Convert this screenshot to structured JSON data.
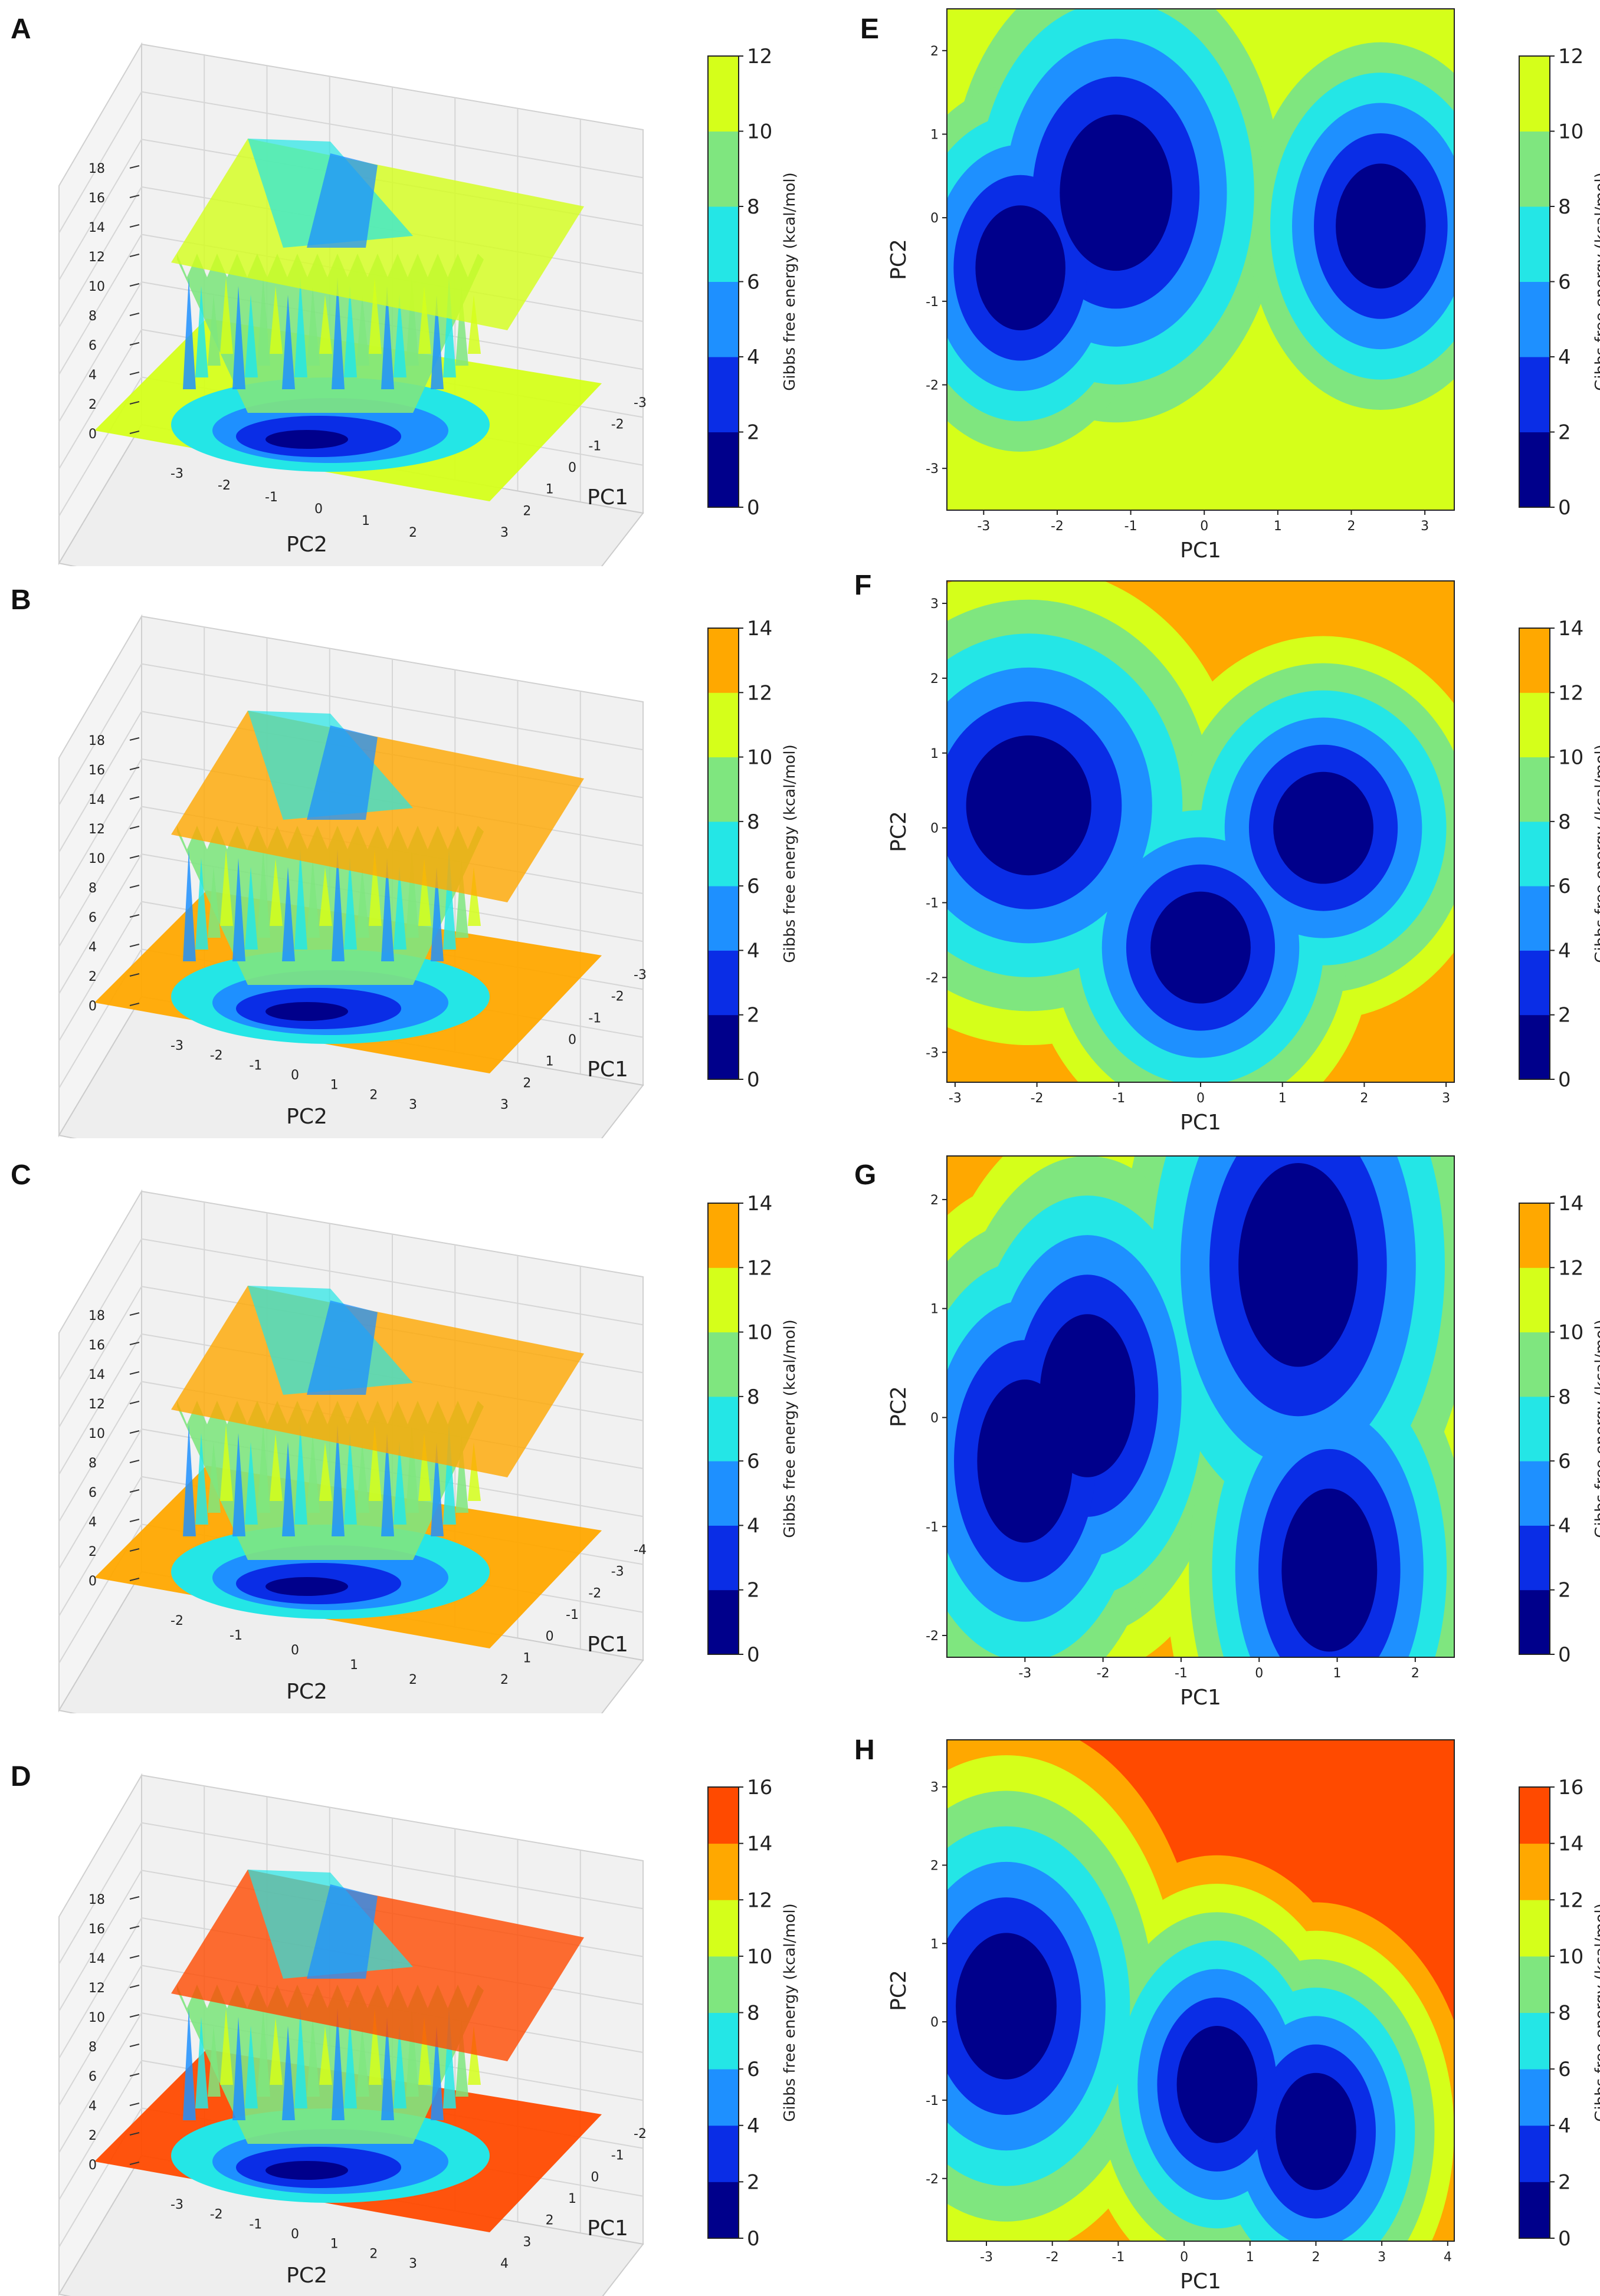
{
  "chart_data": [
    {
      "panel": "A",
      "type": "surface3d",
      "xlabel": "PC1",
      "ylabel": "PC2",
      "zticks": [
        "0",
        "2",
        "4",
        "6",
        "8",
        "10",
        "12",
        "14",
        "16",
        "18"
      ],
      "xticks": [
        "-3",
        "-2",
        "-1",
        "0",
        "1",
        "2",
        "3"
      ],
      "yticks": [
        "-3",
        "-2",
        "-1",
        "0",
        "1",
        "2"
      ],
      "colorbar": {
        "label": "Gibbs free energy (kcal/mol)",
        "ticks": [
          "0",
          "2",
          "4",
          "6",
          "8",
          "10",
          "12"
        ]
      }
    },
    {
      "panel": "B",
      "type": "surface3d",
      "xlabel": "PC1",
      "ylabel": "PC2",
      "zticks": [
        "0",
        "2",
        "4",
        "6",
        "8",
        "10",
        "12",
        "14",
        "16",
        "18"
      ],
      "xticks": [
        "-3",
        "-2",
        "-1",
        "0",
        "1",
        "2",
        "3"
      ],
      "yticks": [
        "-3",
        "-2",
        "-1",
        "0",
        "1",
        "2",
        "3"
      ],
      "colorbar": {
        "label": "Gibbs free energy (kcal/mol)",
        "ticks": [
          "0",
          "2",
          "4",
          "6",
          "8",
          "10",
          "12",
          "14"
        ]
      }
    },
    {
      "panel": "C",
      "type": "surface3d",
      "xlabel": "PC1",
      "ylabel": "PC2",
      "zticks": [
        "0",
        "2",
        "4",
        "6",
        "8",
        "10",
        "12",
        "14",
        "16",
        "18"
      ],
      "xticks": [
        "-4",
        "-3",
        "-2",
        "-1",
        "0",
        "1",
        "2"
      ],
      "yticks": [
        "-2",
        "-1",
        "0",
        "1",
        "2"
      ],
      "colorbar": {
        "label": "Gibbs free energy (kcal/mol)",
        "ticks": [
          "0",
          "2",
          "4",
          "6",
          "8",
          "10",
          "12",
          "14"
        ]
      }
    },
    {
      "panel": "D",
      "type": "surface3d",
      "xlabel": "PC1",
      "ylabel": "PC2",
      "zticks": [
        "0",
        "2",
        "4",
        "6",
        "8",
        "10",
        "12",
        "14",
        "16",
        "18"
      ],
      "xticks": [
        "-2",
        "-1",
        "0",
        "1",
        "2",
        "3",
        "4"
      ],
      "yticks": [
        "-3",
        "-2",
        "-1",
        "0",
        "1",
        "2",
        "3"
      ],
      "colorbar": {
        "label": "Gibbs free energy (kcal/mol)",
        "ticks": [
          "0",
          "2",
          "4",
          "6",
          "8",
          "10",
          "12",
          "14",
          "16"
        ]
      }
    },
    {
      "panel": "E",
      "type": "contour",
      "xlabel": "PC1",
      "ylabel": "PC2",
      "xlim": [
        -3.5,
        3.4
      ],
      "ylim": [
        -3.5,
        2.5
      ],
      "xticks": [
        "-3",
        "-2",
        "-1",
        "0",
        "1",
        "2",
        "3"
      ],
      "yticks": [
        "-3",
        "-2",
        "-1",
        "0",
        "1",
        "2"
      ],
      "colorbar": {
        "label": "Gibbs free energy (kcal/mol)",
        "ticks": [
          "0",
          "2",
          "4",
          "6",
          "8",
          "10",
          "12"
        ]
      },
      "basins": [
        {
          "x": -1.2,
          "y": 0.3
        },
        {
          "x": -2.5,
          "y": -0.6
        },
        {
          "x": 2.4,
          "y": -0.1
        }
      ]
    },
    {
      "panel": "F",
      "type": "contour",
      "xlabel": "PC1",
      "ylabel": "PC2",
      "xlim": [
        -3.1,
        3.1
      ],
      "ylim": [
        -3.4,
        3.3
      ],
      "xticks": [
        "-3",
        "-2",
        "-1",
        "0",
        "1",
        "2",
        "3"
      ],
      "yticks": [
        "-3",
        "-2",
        "-1",
        "0",
        "1",
        "2",
        "3"
      ],
      "colorbar": {
        "label": "Gibbs free energy (kcal/mol)",
        "ticks": [
          "0",
          "2",
          "4",
          "6",
          "8",
          "10",
          "12",
          "14"
        ]
      },
      "basins": [
        {
          "x": -2.1,
          "y": 0.3
        },
        {
          "x": 1.5,
          "y": 0.0
        },
        {
          "x": 0.0,
          "y": -1.6
        }
      ]
    },
    {
      "panel": "G",
      "type": "contour",
      "xlabel": "PC1",
      "ylabel": "PC2",
      "xlim": [
        -4.0,
        2.5
      ],
      "ylim": [
        -2.2,
        2.4
      ],
      "xticks": [
        "-3",
        "-2",
        "-1",
        "0",
        "1",
        "2"
      ],
      "yticks": [
        "-2",
        "-1",
        "0",
        "1",
        "2"
      ],
      "colorbar": {
        "label": "Gibbs free energy (kcal/mol)",
        "ticks": [
          "0",
          "2",
          "4",
          "6",
          "8",
          "10",
          "12",
          "14"
        ]
      },
      "basins": [
        {
          "x": 0.5,
          "y": 1.4
        },
        {
          "x": -2.2,
          "y": 0.2
        },
        {
          "x": 0.9,
          "y": -1.4
        },
        {
          "x": -3.0,
          "y": -0.4
        }
      ]
    },
    {
      "panel": "H",
      "type": "contour",
      "xlabel": "PC1",
      "ylabel": "PC2",
      "xlim": [
        -3.6,
        4.1
      ],
      "ylim": [
        -2.8,
        3.6
      ],
      "xticks": [
        "-3",
        "-2",
        "-1",
        "0",
        "1",
        "2",
        "3",
        "4"
      ],
      "yticks": [
        "-2",
        "-1",
        "0",
        "1",
        "2",
        "3"
      ],
      "colorbar": {
        "label": "Gibbs free energy (kcal/mol)",
        "ticks": [
          "0",
          "2",
          "4",
          "6",
          "8",
          "10",
          "12",
          "14",
          "16"
        ]
      },
      "basins": [
        {
          "x": -2.7,
          "y": 0.2
        },
        {
          "x": 2.0,
          "y": -1.4
        },
        {
          "x": 0.5,
          "y": -0.8
        }
      ]
    }
  ],
  "palette": [
    "#00008b",
    "#0a2de6",
    "#1e90ff",
    "#24e6e6",
    "#7fe67f",
    "#d5ff1a",
    "#ffa800",
    "#ff4a00"
  ]
}
